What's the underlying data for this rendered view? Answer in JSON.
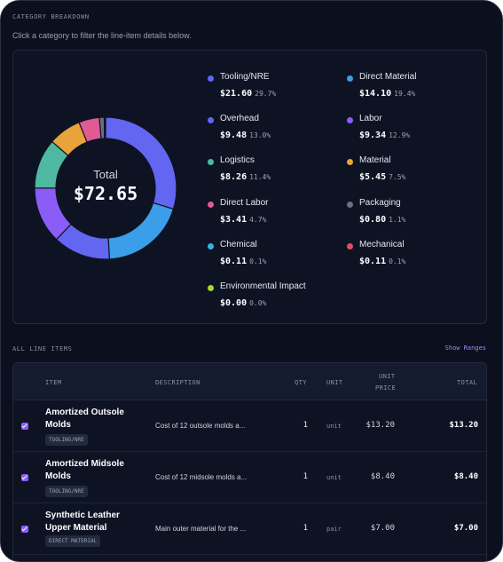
{
  "section": {
    "title": "CATEGORY BREAKDOWN",
    "subtitle": "Click a category to filter the line-item details below."
  },
  "chart_data": {
    "type": "pie",
    "total_label": "Total",
    "total_value": "$72.65",
    "categories": [
      {
        "name": "Tooling/NRE",
        "amount": "$21.60",
        "percent": "29.7%",
        "value": 21.6,
        "color": "#6366f1"
      },
      {
        "name": "Direct Material",
        "amount": "$14.10",
        "percent": "19.4%",
        "value": 14.1,
        "color": "#3b9ee8"
      },
      {
        "name": "Overhead",
        "amount": "$9.48",
        "percent": "13.0%",
        "value": 9.48,
        "color": "#6366f1"
      },
      {
        "name": "Labor",
        "amount": "$9.34",
        "percent": "12.9%",
        "value": 9.34,
        "color": "#8b5cf6"
      },
      {
        "name": "Logistics",
        "amount": "$8.26",
        "percent": "11.4%",
        "value": 8.26,
        "color": "#4fb8a0"
      },
      {
        "name": "Material",
        "amount": "$5.45",
        "percent": "7.5%",
        "value": 5.45,
        "color": "#e8a33a"
      },
      {
        "name": "Direct Labor",
        "amount": "$3.41",
        "percent": "4.7%",
        "value": 3.41,
        "color": "#e05a93"
      },
      {
        "name": "Packaging",
        "amount": "$0.80",
        "percent": "1.1%",
        "value": 0.8,
        "color": "#6b7080"
      },
      {
        "name": "Chemical",
        "amount": "$0.11",
        "percent": "0.1%",
        "value": 0.11,
        "color": "#38b2e0"
      },
      {
        "name": "Mechanical",
        "amount": "$0.11",
        "percent": "0.1%",
        "value": 0.11,
        "color": "#e0505a"
      },
      {
        "name": "Environmental Impact",
        "amount": "$0.00",
        "percent": "0.0%",
        "value": 0.0,
        "color": "#a3d635"
      }
    ]
  },
  "line_items": {
    "title": "ALL LINE ITEMS",
    "show_ranges": "Show Ranges",
    "columns": {
      "item": "ITEM",
      "description": "DESCRIPTION",
      "qty": "QTY",
      "unit": "UNIT",
      "unit_price_1": "UNIT",
      "unit_price_2": "PRICE",
      "total": "TOTAL"
    },
    "rows": [
      {
        "name_1": "Amortized Outsole",
        "name_2": "Molds",
        "tag": "TOOLING/NRE",
        "description": "Cost of 12 outsole molds a...",
        "qty": "1",
        "unit": "unit",
        "unit_price": "$13.20",
        "total": "$13.20"
      },
      {
        "name_1": "Amortized Midsole",
        "name_2": "Molds",
        "tag": "TOOLING/NRE",
        "description": "Cost of 12 midsole molds a...",
        "qty": "1",
        "unit": "unit",
        "unit_price": "$8.40",
        "total": "$8.40"
      },
      {
        "name_1": "Synthetic Leather",
        "name_2": "Upper Material",
        "tag": "DIRECT MATERIAL",
        "description": "Main outer material for the ...",
        "qty": "1",
        "unit": "pair",
        "unit_price": "$7.00",
        "total": "$7.00"
      }
    ]
  }
}
